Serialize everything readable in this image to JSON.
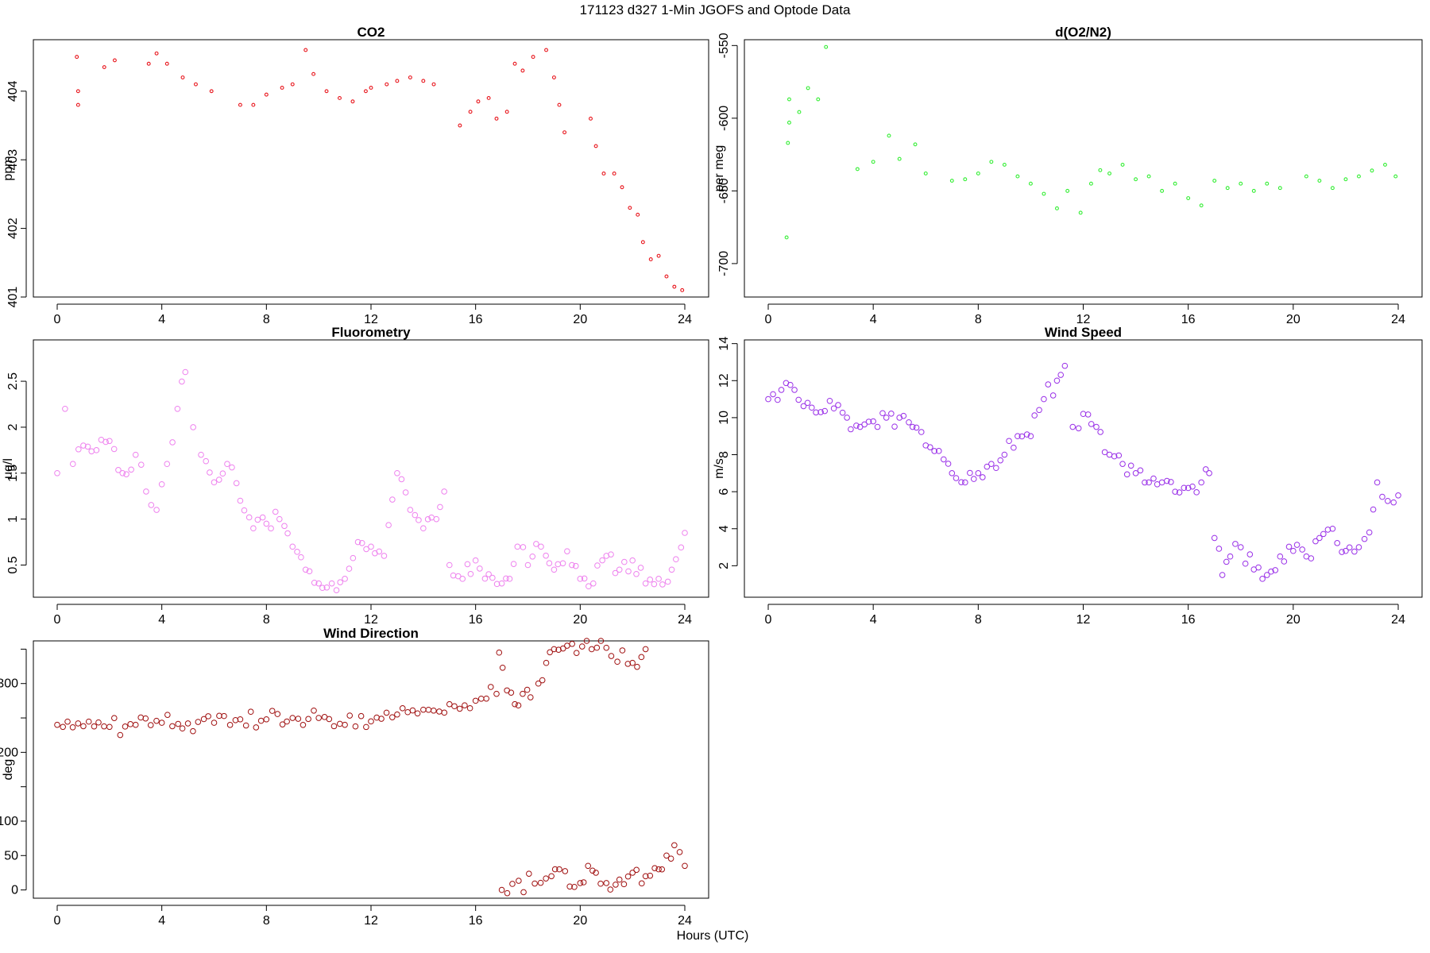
{
  "figure": {
    "title": "171123   d327   1-Min  JGOFS and Optode Data",
    "xlabel": "Hours (UTC)"
  },
  "chart_data": [
    {
      "type": "scatter",
      "title": "CO2",
      "ylabel": "ppm",
      "color": "#e8141b",
      "marker": "small-circle",
      "xlim": [
        0,
        24
      ],
      "ylim": [
        401,
        404.75
      ],
      "xticks": [
        0,
        4,
        8,
        12,
        16,
        20,
        24
      ],
      "yticks": [
        401,
        402,
        403,
        404
      ],
      "yticks_rotated": true,
      "segments": [
        {
          "x": [
            0.75,
            0.8,
            0.8
          ],
          "y": [
            404.5,
            404.0,
            403.8
          ]
        },
        {
          "x": [
            1.8,
            2.2
          ],
          "y": [
            404.35,
            404.45
          ]
        },
        {
          "x": [
            3.5,
            3.8,
            4.2,
            4.8,
            5.3,
            5.9
          ],
          "y": [
            404.4,
            404.55,
            404.4,
            404.2,
            404.1,
            404.0
          ]
        },
        {
          "x": [
            7.0,
            7.5,
            8.0,
            8.6,
            9.0,
            9.5,
            9.8,
            10.3,
            10.8,
            11.3
          ],
          "y": [
            403.8,
            403.8,
            403.95,
            404.05,
            404.1,
            404.6,
            404.25,
            404.0,
            403.9,
            403.85
          ]
        },
        {
          "x": [
            11.8,
            12.0,
            12.6,
            13.0,
            13.5,
            14.0,
            14.4
          ],
          "y": [
            404.0,
            404.05,
            404.1,
            404.15,
            404.2,
            404.15,
            404.1
          ]
        },
        {
          "x": [
            15.4,
            15.8,
            16.1,
            16.5,
            16.8,
            17.2,
            17.5,
            17.8,
            18.2,
            18.7,
            19.0,
            19.2,
            19.4
          ],
          "y": [
            403.5,
            403.7,
            403.85,
            403.9,
            403.6,
            403.7,
            404.4,
            404.3,
            404.5,
            404.6,
            404.2,
            403.8,
            403.4
          ]
        },
        {
          "x": [
            20.4,
            20.6,
            20.9,
            21.3,
            21.6,
            21.9,
            22.2,
            22.4,
            22.7,
            23.0,
            23.3,
            23.6,
            23.9
          ],
          "y": [
            403.6,
            403.2,
            402.8,
            402.8,
            402.6,
            402.3,
            402.2,
            401.8,
            401.55,
            401.6,
            401.3,
            401.15,
            401.1
          ]
        }
      ]
    },
    {
      "type": "scatter",
      "title": "d(O2/N2)",
      "ylabel": "per meg",
      "color": "#33ee33",
      "marker": "small-circle",
      "xlim": [
        0,
        24
      ],
      "ylim": [
        -723,
        -546
      ],
      "xticks": [
        0,
        4,
        8,
        12,
        16,
        20,
        24
      ],
      "yticks": [
        -700,
        -650,
        -600,
        -550
      ],
      "yticks_rotated": true,
      "segments": [
        {
          "x": [
            0.7,
            0.75,
            0.8,
            0.8,
            1.9,
            2.2
          ],
          "y": [
            -682,
            -617,
            -603,
            -587,
            -587,
            -551
          ]
        },
        {
          "x": [
            3.4,
            4.0,
            4.6,
            5.0,
            5.6,
            6.0
          ],
          "y": [
            -635,
            -630,
            -612,
            -628,
            -618,
            -638
          ]
        },
        {
          "x": [
            7.0,
            7.5,
            8.0,
            8.5,
            9.0,
            9.5,
            10.0,
            10.5,
            11.0,
            11.4
          ],
          "y": [
            -643,
            -642,
            -638,
            -630,
            -632,
            -640,
            -645,
            -652,
            -662,
            -650
          ]
        },
        {
          "x": [
            11.9,
            12.3,
            13.0,
            13.5,
            14.0,
            14.5
          ],
          "y": [
            -665,
            -645,
            -638,
            -632,
            -642,
            -640
          ]
        },
        {
          "x": [
            15.0,
            15.5,
            16.0,
            16.5,
            17.0,
            17.5,
            18.0,
            18.5,
            19.0,
            19.5
          ],
          "y": [
            -650,
            -645,
            -655,
            -660,
            -643,
            -648,
            -645,
            -650,
            -645,
            -648
          ]
        },
        {
          "x": [
            20.5,
            21.0,
            21.5,
            22.0,
            22.5,
            23.0,
            23.5,
            23.9
          ],
          "y": [
            -640,
            -643,
            -648,
            -642,
            -640,
            -636,
            -632,
            -640
          ]
        }
      ]
    },
    {
      "type": "scatter",
      "title": "Fluorometry",
      "ylabel": "ug/l",
      "color": "#ee82ee",
      "marker": "circle",
      "xlim": [
        0,
        24
      ],
      "ylim": [
        0.15,
        2.95
      ],
      "xticks": [
        0,
        4,
        8,
        12,
        16,
        20,
        24
      ],
      "yticks": [
        0.5,
        1.0,
        1.5,
        2.0,
        2.5
      ],
      "yticks_rotated": true,
      "segments": [
        {
          "x": [
            0.0,
            0.3,
            0.6,
            1.0,
            1.5,
            2.0,
            2.5,
            3.0,
            3.4,
            3.8,
            4.2,
            4.6,
            4.9,
            5.2,
            5.5,
            6.0,
            6.5,
            7.0,
            7.5,
            8.0,
            8.5,
            9.0,
            9.5,
            10.0,
            10.5,
            11.0,
            11.5,
            12.0,
            12.5,
            13.0,
            13.5,
            14.0,
            14.5,
            14.8,
            15.0,
            15.5,
            16.0,
            16.5,
            17.0,
            17.3,
            17.6,
            18.0,
            18.5,
            19.0,
            19.5,
            20.0,
            20.5,
            21.0,
            21.5,
            22.0,
            22.5,
            23.0,
            23.5,
            24.0
          ],
          "y": [
            1.5,
            2.2,
            1.6,
            1.8,
            1.75,
            1.85,
            1.5,
            1.7,
            1.3,
            1.1,
            1.6,
            2.2,
            2.6,
            2.0,
            1.7,
            1.4,
            1.6,
            1.2,
            0.9,
            0.95,
            1.0,
            0.7,
            0.45,
            0.3,
            0.3,
            0.35,
            0.75,
            0.7,
            0.6,
            1.5,
            1.1,
            0.9,
            1.0,
            1.3,
            0.5,
            0.35,
            0.55,
            0.4,
            0.3,
            0.35,
            0.7,
            0.5,
            0.7,
            0.45,
            0.65,
            0.35,
            0.3,
            0.6,
            0.45,
            0.55,
            0.3,
            0.35,
            0.45,
            0.85
          ]
        }
      ]
    },
    {
      "type": "scatter",
      "title": "Wind Speed",
      "ylabel": "m/s",
      "color": "#9a30e8",
      "marker": "circle",
      "xlim": [
        0,
        24
      ],
      "ylim": [
        0.3,
        14.2
      ],
      "xticks": [
        0,
        4,
        8,
        12,
        16,
        20,
        24
      ],
      "yticks": [
        2,
        4,
        6,
        8,
        10,
        12,
        14
      ],
      "yticks_rotated": true,
      "segments": [
        {
          "x": [
            0.0,
            0.5,
            1.0,
            1.5,
            2.0,
            2.5,
            3.0,
            3.5,
            4.0,
            4.5,
            5.0,
            5.5,
            6.0,
            6.5,
            7.0,
            7.5,
            8.0,
            8.5,
            9.0,
            9.5,
            10.0,
            10.5,
            11.0,
            11.3,
            11.6,
            12.0,
            12.5,
            13.0,
            13.5,
            14.0,
            14.5,
            15.0,
            15.5,
            16.0,
            16.5,
            16.8
          ],
          "y": [
            11.0,
            11.5,
            11.5,
            10.8,
            10.3,
            10.5,
            10.0,
            9.5,
            9.8,
            10.0,
            10.0,
            9.5,
            8.5,
            8.2,
            7.0,
            6.5,
            7.0,
            7.5,
            8.0,
            9.0,
            9.0,
            11.0,
            12.0,
            12.8,
            9.5,
            10.2,
            9.5,
            8.0,
            7.5,
            7.0,
            6.5,
            6.5,
            6.0,
            6.2,
            6.5,
            7.0
          ]
        },
        {
          "x": [
            17.0,
            17.3,
            17.6,
            18.0,
            18.5,
            19.0,
            19.5,
            20.0,
            20.5,
            21.0,
            21.5,
            22.0,
            22.5,
            22.9,
            23.2,
            23.6,
            24.0
          ],
          "y": [
            3.5,
            1.5,
            2.5,
            3.0,
            1.8,
            1.5,
            2.5,
            2.8,
            2.5,
            3.5,
            4.0,
            2.8,
            3.0,
            3.8,
            6.5,
            5.5,
            5.8
          ]
        }
      ]
    },
    {
      "type": "scatter",
      "title": "Wind Direction",
      "ylabel": "deg",
      "color": "#a01010",
      "marker": "circle",
      "xlim": [
        0,
        24
      ],
      "ylim": [
        -12,
        362
      ],
      "xticks": [
        0,
        4,
        8,
        12,
        16,
        20,
        24
      ],
      "yticks": [
        0,
        50,
        100,
        150,
        200,
        250,
        300,
        350
      ],
      "ytick_labels_shown": [
        0,
        50,
        100,
        200,
        300
      ],
      "yticks_rotated": false,
      "segments": [
        {
          "x": [
            0.0,
            1.0,
            2.0,
            3.0,
            4.0,
            5.0,
            6.0,
            7.0,
            8.0,
            9.0,
            10.0,
            11.0,
            12.0,
            13.0,
            14.0,
            15.0,
            16.0,
            16.8
          ],
          "y": [
            240,
            238,
            237,
            240,
            243,
            242,
            243,
            248,
            248,
            250,
            250,
            240,
            245,
            255,
            262,
            270,
            275,
            285
          ]
        },
        {
          "x": [
            16.9,
            17.2,
            17.5,
            17.8,
            18.1,
            18.4,
            18.7,
            19.0,
            19.5,
            21.0,
            22.0,
            22.5
          ],
          "y": [
            345,
            290,
            270,
            285,
            280,
            300,
            330,
            350,
            355,
            352,
            330,
            350
          ]
        },
        {
          "x": [
            17.0,
            18.9,
            19.2,
            19.6,
            20.0,
            20.3,
            20.6,
            21.0,
            21.5,
            22.0,
            22.5,
            23.0,
            23.3,
            23.6,
            24.0
          ],
          "y": [
            0,
            20,
            30,
            5,
            10,
            35,
            25,
            10,
            15,
            25,
            20,
            30,
            50,
            65,
            35
          ]
        }
      ]
    }
  ]
}
